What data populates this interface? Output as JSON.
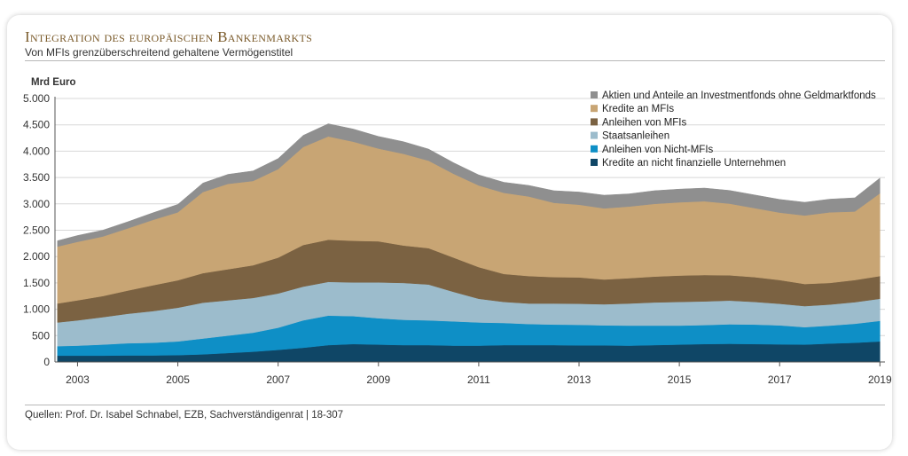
{
  "header": {
    "title": "Integration des europäischen Bankenmarkts",
    "subtitle": "Von MFIs grenzüberschreitend gehaltene Vermögenstitel"
  },
  "footer": {
    "source": "Quellen: Prof. Dr. Isabel Schnabel, EZB, Sachverständigenrat | 18-307"
  },
  "chart_data": {
    "type": "area",
    "stacked": true,
    "ylabel": "Mrd Euro",
    "ylim": [
      0,
      5000
    ],
    "xlim": [
      2002.55,
      2019.1
    ],
    "yticks": [
      0,
      500,
      1000,
      1500,
      2000,
      2500,
      3000,
      3500,
      4000,
      4500,
      5000
    ],
    "ytick_labels": [
      "0",
      "500",
      "1.000",
      "1.500",
      "2.000",
      "2.500",
      "3.000",
      "3.500",
      "4.000",
      "4.500",
      "5.000"
    ],
    "xticks": [
      2003,
      2005,
      2007,
      2009,
      2011,
      2013,
      2015,
      2017,
      2019
    ],
    "xtick_labels": [
      "2003",
      "2005",
      "2007",
      "2009",
      "2011",
      "2013",
      "2015",
      "2017",
      "2019"
    ],
    "legend_position": "top-right",
    "x": [
      2002.6,
      2003.0,
      2003.5,
      2004.0,
      2004.5,
      2005.0,
      2005.5,
      2006.0,
      2006.5,
      2007.0,
      2007.5,
      2008.0,
      2008.5,
      2009.0,
      2009.5,
      2010.0,
      2010.5,
      2011.0,
      2011.5,
      2012.0,
      2012.5,
      2013.0,
      2013.5,
      2014.0,
      2014.5,
      2015.0,
      2015.5,
      2016.0,
      2016.5,
      2017.0,
      2017.5,
      2018.0,
      2018.5,
      2019.0
    ],
    "series": [
      {
        "name": "Kredite an nicht finanzielle Unternehmen",
        "color": "#0f4666",
        "values": [
          120,
          120,
          120,
          125,
          125,
          130,
          145,
          170,
          195,
          230,
          270,
          320,
          340,
          330,
          320,
          320,
          310,
          310,
          320,
          320,
          320,
          315,
          315,
          310,
          320,
          330,
          340,
          345,
          340,
          335,
          330,
          350,
          365,
          390
        ]
      },
      {
        "name": "Anleihen von Nicht-MFIs",
        "color": "#0e8fc6",
        "values": [
          180,
          190,
          210,
          230,
          240,
          260,
          300,
          330,
          360,
          420,
          520,
          560,
          530,
          500,
          480,
          470,
          460,
          440,
          420,
          400,
          390,
          390,
          380,
          380,
          370,
          360,
          360,
          370,
          370,
          360,
          330,
          340,
          360,
          390
        ]
      },
      {
        "name": "Staatsanleihen",
        "color": "#9cbccc",
        "values": [
          450,
          480,
          520,
          560,
          600,
          640,
          680,
          670,
          660,
          650,
          640,
          640,
          640,
          680,
          700,
          680,
          560,
          450,
          400,
          390,
          400,
          400,
          400,
          420,
          440,
          450,
          450,
          450,
          430,
          410,
          400,
          400,
          410,
          420
        ]
      },
      {
        "name": "Anleihen von MFIs",
        "color": "#7b6242",
        "values": [
          360,
          380,
          400,
          440,
          490,
          520,
          560,
          590,
          620,
          680,
          790,
          800,
          790,
          780,
          710,
          690,
          650,
          600,
          530,
          520,
          500,
          500,
          470,
          480,
          490,
          500,
          500,
          480,
          470,
          450,
          420,
          410,
          420,
          430
        ]
      },
      {
        "name": "Kredite an MFIs",
        "color": "#c8a574",
        "values": [
          1080,
          1110,
          1130,
          1180,
          1240,
          1290,
          1540,
          1620,
          1600,
          1680,
          1860,
          1960,
          1880,
          1760,
          1740,
          1660,
          1590,
          1550,
          1540,
          1510,
          1410,
          1380,
          1350,
          1360,
          1380,
          1390,
          1400,
          1360,
          1310,
          1280,
          1300,
          1340,
          1300,
          1570
        ]
      },
      {
        "name": "Aktien und Anteile an Investmentfonds ohne Geldmarktfonds",
        "color": "#8f8f8f",
        "values": [
          110,
          120,
          120,
          125,
          135,
          150,
          170,
          180,
          190,
          200,
          220,
          240,
          240,
          230,
          230,
          220,
          210,
          200,
          200,
          210,
          230,
          240,
          250,
          240,
          250,
          250,
          250,
          250,
          250,
          250,
          250,
          250,
          260,
          290
        ]
      }
    ]
  }
}
